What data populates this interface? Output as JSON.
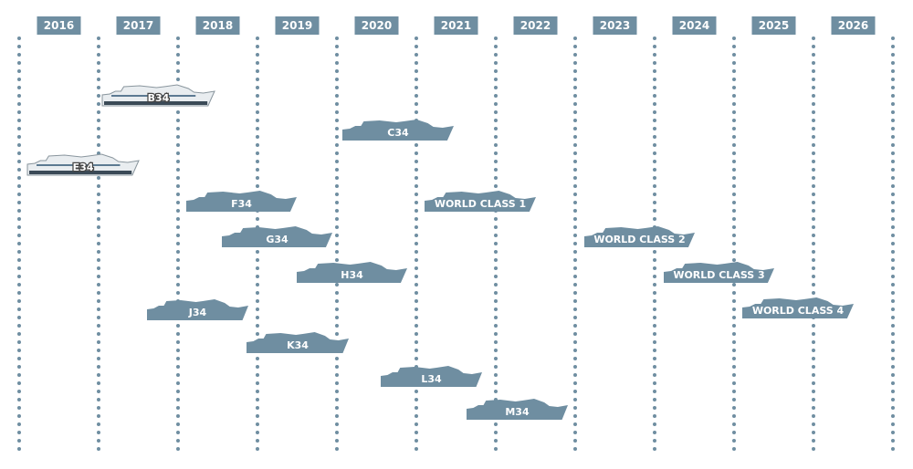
{
  "years": [
    "2016",
    "2017",
    "2018",
    "2019",
    "2020",
    "2021",
    "2022",
    "2023",
    "2024",
    "2025",
    "2026"
  ],
  "ships": [
    {
      "label": "B34"
    },
    {
      "label": "C34"
    },
    {
      "label": "E34"
    },
    {
      "label": "F34"
    },
    {
      "label": "WORLD CLASS 1"
    },
    {
      "label": "G34"
    },
    {
      "label": "WORLD CLASS 2"
    },
    {
      "label": "H34"
    },
    {
      "label": "WORLD CLASS 3"
    },
    {
      "label": "J34"
    },
    {
      "label": "WORLD CLASS 4"
    },
    {
      "label": "K34"
    },
    {
      "label": "L34"
    },
    {
      "label": "M34"
    }
  ]
}
